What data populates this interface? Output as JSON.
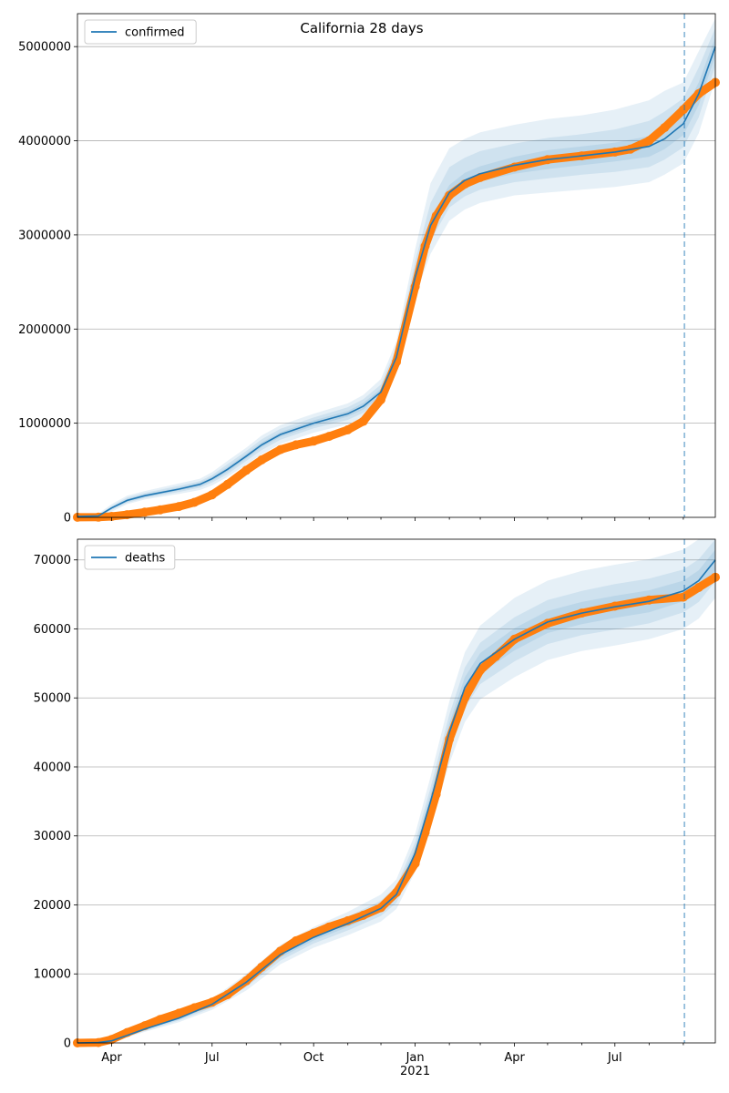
{
  "title": "California 28 days",
  "colors": {
    "model": "#1f77b4",
    "observed": "#ff7f0e",
    "band": "#1f77b4",
    "forecast_line": "#1f77b4",
    "grid": "#b0b0b0"
  },
  "chart_data": [
    {
      "type": "line",
      "panel": "top",
      "legend": "confirmed",
      "legend_position": "upper-left",
      "grid": "horizontal",
      "xlim": [
        "2020-03-01",
        "2021-09-30"
      ],
      "ylim": [
        0,
        5350000
      ],
      "yticks": [
        0,
        1000000,
        2000000,
        3000000,
        4000000,
        5000000
      ],
      "ytick_labels": [
        "0",
        "1000000",
        "2000000",
        "3000000",
        "4000000",
        "5000000"
      ],
      "forecast_start": "2021-09-02",
      "model": {
        "x": [
          "2020-03-01",
          "2020-03-20",
          "2020-04-01",
          "2020-04-15",
          "2020-05-01",
          "2020-06-01",
          "2020-06-20",
          "2020-07-01",
          "2020-07-15",
          "2020-08-01",
          "2020-08-15",
          "2020-09-01",
          "2020-10-01",
          "2020-11-01",
          "2020-11-15",
          "2020-12-01",
          "2020-12-15",
          "2021-01-01",
          "2021-01-15",
          "2021-02-01",
          "2021-02-15",
          "2021-03-01",
          "2021-04-01",
          "2021-05-01",
          "2021-06-01",
          "2021-07-01",
          "2021-08-01",
          "2021-08-15",
          "2021-09-01",
          "2021-09-15",
          "2021-09-30"
        ],
        "y": [
          10000,
          15000,
          100000,
          180000,
          230000,
          300000,
          350000,
          410000,
          510000,
          650000,
          770000,
          880000,
          1000000,
          1100000,
          1180000,
          1330000,
          1700000,
          2550000,
          3100000,
          3450000,
          3580000,
          3650000,
          3740000,
          3800000,
          3840000,
          3880000,
          3940000,
          4020000,
          4180000,
          4500000,
          5000000
        ],
        "bands": [
          {
            "level": "outer",
            "lower": [
              0,
              0,
              60000,
              140000,
              190000,
              250000,
              290000,
              340000,
              430000,
              560000,
              670000,
              780000,
              900000,
              990000,
              1060000,
              1200000,
              1550000,
              2350000,
              2800000,
              3150000,
              3270000,
              3340000,
              3420000,
              3450000,
              3480000,
              3510000,
              3560000,
              3640000,
              3760000,
              4080000,
              4650000
            ],
            "upper": [
              20000,
              40000,
              140000,
              230000,
              280000,
              360000,
              410000,
              480000,
              600000,
              740000,
              870000,
              980000,
              1100000,
              1210000,
              1300000,
              1470000,
              1870000,
              2850000,
              3550000,
              3920000,
              4020000,
              4090000,
              4170000,
              4230000,
              4270000,
              4330000,
              4430000,
              4530000,
              4620000,
              4950000,
              5300000
            ]
          },
          {
            "level": "middle",
            "lower": [
              0,
              5000,
              80000,
              155000,
              205000,
              270000,
              315000,
              370000,
              460000,
              600000,
              715000,
              825000,
              945000,
              1035000,
              1110000,
              1255000,
              1610000,
              2440000,
              2940000,
              3290000,
              3410000,
              3480000,
              3560000,
              3600000,
              3640000,
              3670000,
              3720000,
              3800000,
              3930000,
              4250000,
              4800000
            ],
            "upper": [
              15000,
              30000,
              120000,
              210000,
              260000,
              335000,
              385000,
              450000,
              565000,
              705000,
              830000,
              940000,
              1060000,
              1170000,
              1255000,
              1410000,
              1800000,
              2720000,
              3340000,
              3720000,
              3820000,
              3890000,
              3970000,
              4030000,
              4070000,
              4120000,
              4210000,
              4310000,
              4450000,
              4780000,
              5200000
            ]
          },
          {
            "level": "inner",
            "lower": [
              5000,
              10000,
              90000,
              165000,
              215000,
              285000,
              330000,
              390000,
              485000,
              625000,
              745000,
              855000,
              970000,
              1070000,
              1145000,
              1295000,
              1655000,
              2500000,
              3020000,
              3370000,
              3500000,
              3570000,
              3650000,
              3700000,
              3740000,
              3780000,
              3830000,
              3910000,
              4060000,
              4380000,
              4900000
            ],
            "upper": [
              15000,
              25000,
              110000,
              195000,
              245000,
              315000,
              370000,
              430000,
              535000,
              675000,
              795000,
              905000,
              1030000,
              1130000,
              1215000,
              1365000,
              1745000,
              2600000,
              3180000,
              3530000,
              3660000,
              3730000,
              3830000,
              3900000,
              3940000,
              3980000,
              4050000,
              4130000,
              4300000,
              4620000,
              5100000
            ]
          }
        ]
      },
      "observed": {
        "x": [
          "2020-03-01",
          "2020-03-20",
          "2020-04-01",
          "2020-04-15",
          "2020-05-01",
          "2020-05-15",
          "2020-06-01",
          "2020-06-15",
          "2020-07-01",
          "2020-07-15",
          "2020-08-01",
          "2020-08-15",
          "2020-09-01",
          "2020-09-15",
          "2020-10-01",
          "2020-10-15",
          "2020-11-01",
          "2020-11-15",
          "2020-12-01",
          "2020-12-15",
          "2021-01-01",
          "2021-01-10",
          "2021-01-20",
          "2021-02-01",
          "2021-02-15",
          "2021-03-01",
          "2021-04-01",
          "2021-05-01",
          "2021-06-01",
          "2021-07-01",
          "2021-07-15",
          "2021-08-01",
          "2021-08-15",
          "2021-09-01",
          "2021-09-15",
          "2021-09-30"
        ],
        "y": [
          1000,
          1500,
          10000,
          28000,
          55000,
          80000,
          115000,
          160000,
          240000,
          350000,
          500000,
          610000,
          720000,
          770000,
          810000,
          860000,
          930000,
          1020000,
          1250000,
          1650000,
          2450000,
          2880000,
          3200000,
          3420000,
          3540000,
          3610000,
          3720000,
          3800000,
          3840000,
          3880000,
          3910000,
          4000000,
          4140000,
          4330000,
          4500000,
          4620000
        ]
      }
    },
    {
      "type": "line",
      "panel": "bottom",
      "legend": "deaths",
      "legend_position": "upper-left",
      "grid": "horizontal",
      "xlim": [
        "2020-03-01",
        "2021-09-30"
      ],
      "ylim": [
        0,
        73000
      ],
      "yticks": [
        0,
        10000,
        20000,
        30000,
        40000,
        50000,
        60000,
        70000
      ],
      "ytick_labels": [
        "0",
        "10000",
        "20000",
        "30000",
        "40000",
        "50000",
        "60000",
        "70000"
      ],
      "xticks": [
        "2020-04-01",
        "2020-07-01",
        "2020-10-01",
        "2021-01-01",
        "2021-04-01",
        "2021-07-01"
      ],
      "xtick_labels": [
        "Apr",
        "Jul",
        "Oct",
        "Jan\n2021",
        "Apr",
        "Jul"
      ],
      "forecast_start": "2021-09-02",
      "model": {
        "x": [
          "2020-03-01",
          "2020-03-20",
          "2020-04-01",
          "2020-04-15",
          "2020-05-01",
          "2020-06-01",
          "2020-07-01",
          "2020-08-01",
          "2020-09-01",
          "2020-10-01",
          "2020-11-01",
          "2020-12-01",
          "2020-12-15",
          "2021-01-01",
          "2021-01-15",
          "2021-02-01",
          "2021-02-15",
          "2021-03-01",
          "2021-04-01",
          "2021-05-01",
          "2021-06-01",
          "2021-07-01",
          "2021-08-01",
          "2021-09-01",
          "2021-09-15",
          "2021-09-30"
        ],
        "y": [
          0,
          50,
          300,
          1100,
          2000,
          3600,
          5600,
          8800,
          12800,
          15300,
          17300,
          19500,
          21500,
          27500,
          35000,
          45000,
          51500,
          55000,
          58500,
          61000,
          62300,
          63200,
          64000,
          65500,
          67000,
          70000
        ],
        "bands": [
          {
            "level": "outer",
            "lower": [
              0,
              0,
              200,
              800,
              1600,
              3000,
              4800,
              7600,
              11400,
              13800,
              15600,
              17600,
              19400,
              24800,
              31500,
              40500,
              46500,
              49800,
              53000,
              55500,
              56800,
              57600,
              58500,
              60000,
              61500,
              64500
            ],
            "upper": [
              0,
              100,
              400,
              1400,
              2400,
              4200,
              6400,
              10000,
              14200,
              16800,
              19000,
              21500,
              23700,
              30300,
              38600,
              49500,
              56600,
              60500,
              64500,
              67000,
              68400,
              69300,
              70100,
              71500,
              73000,
              73000
            ]
          },
          {
            "level": "middle",
            "lower": [
              0,
              20,
              240,
              920,
              1750,
              3250,
              5100,
              8100,
              11950,
              14400,
              16300,
              18400,
              20300,
              25900,
              33000,
              42400,
              48600,
              52000,
              55300,
              57800,
              59100,
              59900,
              60800,
              62400,
              63900,
              66900
            ],
            "upper": [
              0,
              80,
              360,
              1280,
              2250,
              3950,
              6100,
              9500,
              13650,
              16200,
              18300,
              20600,
              22700,
              29100,
              37000,
              47600,
              54400,
              58000,
              61700,
              64200,
              65500,
              66500,
              67300,
              68600,
              70100,
              73000
            ]
          },
          {
            "level": "inner",
            "lower": [
              0,
              30,
              270,
              1000,
              1870,
              3420,
              5350,
              8450,
              12380,
              14850,
              16800,
              18950,
              20900,
              26700,
              34000,
              43700,
              50000,
              53500,
              56900,
              59400,
              60700,
              61600,
              62400,
              64000,
              65500,
              68500
            ],
            "upper": [
              0,
              70,
              330,
              1200,
              2130,
              3780,
              5850,
              9150,
              13220,
              15750,
              17800,
              20050,
              22100,
              28300,
              36000,
              46300,
              53000,
              56500,
              60100,
              62600,
              63900,
              64800,
              65600,
              67000,
              68500,
              71500
            ]
          }
        ]
      },
      "observed": {
        "x": [
          "2020-03-01",
          "2020-03-20",
          "2020-04-01",
          "2020-04-15",
          "2020-05-01",
          "2020-05-15",
          "2020-06-01",
          "2020-06-15",
          "2020-07-01",
          "2020-07-15",
          "2020-08-01",
          "2020-08-15",
          "2020-09-01",
          "2020-09-15",
          "2020-10-01",
          "2020-10-15",
          "2020-11-01",
          "2020-11-15",
          "2020-12-01",
          "2020-12-15",
          "2021-01-01",
          "2021-01-10",
          "2021-01-20",
          "2021-02-01",
          "2021-02-15",
          "2021-03-01",
          "2021-03-15",
          "2021-04-01",
          "2021-05-01",
          "2021-06-01",
          "2021-07-01",
          "2021-08-01",
          "2021-09-01",
          "2021-09-15",
          "2021-09-30"
        ],
        "y": [
          0,
          50,
          500,
          1500,
          2500,
          3400,
          4300,
          5100,
          5900,
          7000,
          9000,
          11000,
          13300,
          14800,
          15900,
          16800,
          17700,
          18500,
          19600,
          21800,
          26000,
          30500,
          36000,
          44000,
          50000,
          54000,
          56000,
          58500,
          60800,
          62300,
          63300,
          64200,
          64600,
          66000,
          67500
        ]
      }
    }
  ]
}
